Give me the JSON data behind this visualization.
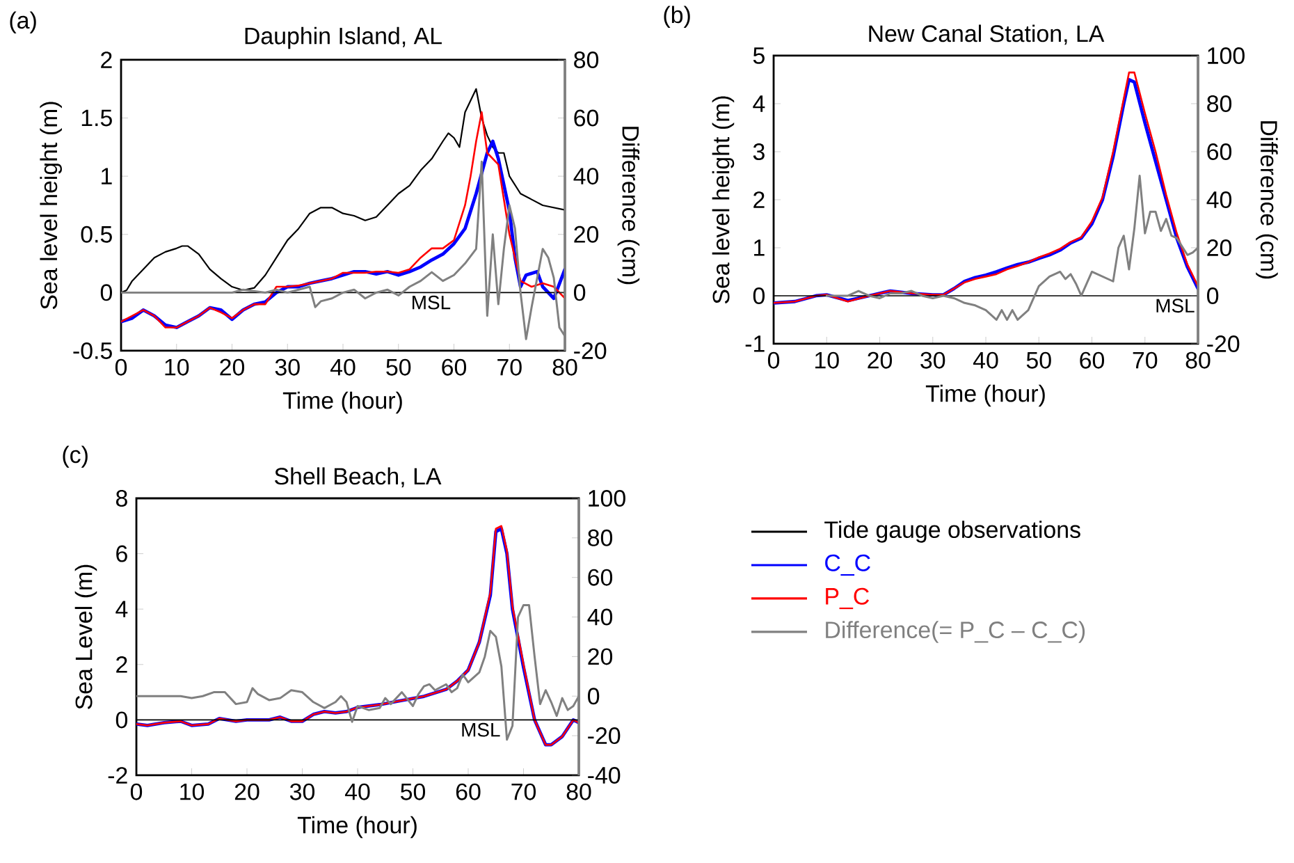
{
  "chart_data": [
    {
      "type": "line",
      "title": "Dauphin Island, AL",
      "xlabel": "Time (hour)",
      "ylabel": "Sea level height (m)",
      "y2label": "Difference (cm)",
      "annotations": [
        "(a)"
      ],
      "xlim": [
        0,
        80
      ],
      "xticks": [
        0,
        10,
        20,
        30,
        40,
        50,
        60,
        70,
        80
      ],
      "ylim": [
        -0.5,
        2
      ],
      "yticks": [
        -0.5,
        0,
        0.5,
        1,
        1.5,
        2
      ],
      "y2lim": [
        -20,
        80
      ],
      "y2ticks": [
        -20,
        0,
        20,
        40,
        60,
        80
      ],
      "ref_lines": [
        {
          "axis": "y",
          "value": 0,
          "label": "MSL",
          "color": "#000000"
        }
      ],
      "legend": "bottom right",
      "series": [
        {
          "name": "Tide gauge observations",
          "color": "#000000",
          "x": [
            0,
            1,
            2,
            4,
            6,
            8,
            10,
            11,
            12,
            14,
            16,
            18,
            20,
            22,
            24,
            26,
            28,
            30,
            32,
            34,
            36,
            38,
            40,
            42,
            44,
            46,
            48,
            50,
            52,
            54,
            56,
            58,
            59,
            60,
            61,
            62,
            63,
            64,
            65,
            66,
            67,
            68,
            69,
            70,
            72,
            74,
            76,
            78,
            80
          ],
          "values": [
            0,
            0.02,
            0.1,
            0.2,
            0.3,
            0.35,
            0.38,
            0.4,
            0.4,
            0.33,
            0.2,
            0.12,
            0.05,
            0.02,
            0.04,
            0.15,
            0.3,
            0.45,
            0.55,
            0.68,
            0.73,
            0.73,
            0.68,
            0.66,
            0.62,
            0.65,
            0.75,
            0.85,
            0.92,
            1.05,
            1.15,
            1.3,
            1.37,
            1.33,
            1.25,
            1.55,
            1.65,
            1.75,
            1.5,
            1.35,
            1.25,
            1.2,
            1.2,
            1.0,
            0.85,
            0.8,
            0.75,
            0.73,
            0.71
          ]
        },
        {
          "name": "C_C",
          "color": "#0000ff",
          "x": [
            0,
            2,
            4,
            6,
            8,
            10,
            12,
            14,
            16,
            18,
            20,
            22,
            24,
            26,
            28,
            30,
            32,
            34,
            36,
            38,
            40,
            42,
            44,
            46,
            48,
            50,
            52,
            54,
            56,
            58,
            60,
            62,
            64,
            66,
            67,
            68,
            70,
            71,
            72,
            73,
            75,
            76,
            78,
            80
          ],
          "values": [
            -0.25,
            -0.22,
            -0.15,
            -0.2,
            -0.28,
            -0.3,
            -0.25,
            -0.2,
            -0.13,
            -0.15,
            -0.23,
            -0.15,
            -0.1,
            -0.08,
            0,
            0.05,
            0.05,
            0.08,
            0.1,
            0.12,
            0.15,
            0.18,
            0.18,
            0.16,
            0.18,
            0.15,
            0.18,
            0.22,
            0.28,
            0.33,
            0.42,
            0.55,
            0.85,
            1.2,
            1.3,
            1.15,
            0.7,
            0.3,
            0.05,
            0.15,
            0.18,
            0.05,
            -0.05,
            0.2
          ]
        },
        {
          "name": "P_C",
          "color": "#ff0000",
          "x": [
            0,
            2,
            4,
            6,
            8,
            10,
            12,
            14,
            16,
            18,
            20,
            22,
            24,
            26,
            28,
            30,
            32,
            34,
            36,
            38,
            40,
            42,
            44,
            46,
            48,
            50,
            52,
            54,
            56,
            58,
            60,
            62,
            63,
            64,
            65,
            66,
            68,
            70,
            71,
            72,
            74,
            76,
            78,
            80
          ],
          "values": [
            -0.25,
            -0.2,
            -0.15,
            -0.2,
            -0.3,
            -0.3,
            -0.25,
            -0.2,
            -0.13,
            -0.17,
            -0.22,
            -0.15,
            -0.1,
            -0.1,
            0.05,
            0.05,
            0.06,
            0.08,
            0.1,
            0.12,
            0.17,
            0.17,
            0.17,
            0.18,
            0.18,
            0.17,
            0.2,
            0.3,
            0.38,
            0.38,
            0.45,
            0.75,
            1.0,
            1.3,
            1.55,
            1.2,
            1.1,
            0.5,
            0.3,
            0.1,
            0.05,
            0.08,
            0.05,
            -0.05
          ]
        },
        {
          "name": "Difference(= P_C – C_C)",
          "color": "#808080",
          "axis": "y2",
          "x": [
            0,
            10,
            20,
            22,
            26,
            28,
            30,
            32,
            34,
            35,
            36,
            38,
            40,
            42,
            44,
            46,
            48,
            50,
            52,
            54,
            56,
            58,
            60,
            62,
            64,
            65,
            66,
            67,
            68,
            69,
            70,
            71,
            72,
            73,
            74,
            76,
            77,
            78,
            79,
            80
          ],
          "values": [
            0,
            0,
            0,
            1,
            0,
            1,
            0,
            1,
            2,
            -5,
            -3,
            -2,
            0,
            1,
            -2,
            0,
            1,
            -1,
            2,
            4,
            7,
            4,
            6,
            10,
            15,
            45,
            -8,
            20,
            -4,
            15,
            30,
            22,
            0,
            -16,
            -5,
            15,
            12,
            5,
            -12,
            -15
          ]
        }
      ]
    },
    {
      "type": "line",
      "title": "New Canal Station, LA",
      "xlabel": "Time (hour)",
      "ylabel": "Sea level height (m)",
      "y2label": "Difference (cm)",
      "annotations": [
        "(b)"
      ],
      "xlim": [
        0,
        80
      ],
      "xticks": [
        0,
        10,
        20,
        30,
        40,
        50,
        60,
        70,
        80
      ],
      "ylim": [
        -1,
        5
      ],
      "yticks": [
        -1,
        0,
        1,
        2,
        3,
        4,
        5
      ],
      "y2lim": [
        -20,
        100
      ],
      "y2ticks": [
        -20,
        0,
        20,
        40,
        60,
        80,
        100
      ],
      "ref_lines": [
        {
          "axis": "y",
          "value": 0,
          "label": "MSL",
          "color": "#000000"
        }
      ],
      "series": [
        {
          "color": "#0000ff",
          "x": [
            0,
            4,
            8,
            10,
            14,
            18,
            22,
            26,
            30,
            32,
            34,
            36,
            38,
            40,
            42,
            44,
            46,
            48,
            50,
            52,
            54,
            56,
            58,
            60,
            62,
            64,
            66,
            67,
            68,
            70,
            72,
            74,
            76,
            78,
            80
          ],
          "values": [
            -0.15,
            -0.12,
            0,
            0.02,
            -0.1,
            0,
            0.1,
            0.05,
            0.02,
            0.02,
            0.15,
            0.3,
            0.38,
            0.43,
            0.5,
            0.58,
            0.65,
            0.7,
            0.78,
            0.85,
            0.95,
            1.1,
            1.2,
            1.5,
            2.0,
            2.9,
            4.0,
            4.5,
            4.45,
            3.6,
            2.8,
            2.0,
            1.2,
            0.6,
            0.15
          ]
        },
        {
          "color": "#ff0000",
          "x": [
            0,
            4,
            8,
            10,
            14,
            18,
            22,
            26,
            30,
            32,
            34,
            36,
            38,
            40,
            42,
            44,
            46,
            48,
            50,
            52,
            54,
            56,
            58,
            60,
            62,
            64,
            66,
            67,
            68,
            70,
            72,
            74,
            76,
            78,
            80
          ],
          "values": [
            -0.15,
            -0.12,
            0,
            0.02,
            -0.12,
            0,
            0.1,
            0.05,
            0.02,
            0.02,
            0.15,
            0.28,
            0.35,
            0.4,
            0.45,
            0.55,
            0.62,
            0.7,
            0.8,
            0.88,
            0.98,
            1.12,
            1.22,
            1.55,
            2.05,
            3.0,
            4.1,
            4.65,
            4.65,
            3.8,
            3.0,
            2.1,
            1.3,
            0.65,
            0.2
          ]
        },
        {
          "color": "#808080",
          "axis": "y2",
          "x": [
            10,
            14,
            16,
            18,
            20,
            22,
            24,
            26,
            28,
            30,
            32,
            34,
            36,
            38,
            40,
            42,
            43,
            44,
            45,
            46,
            48,
            50,
            52,
            54,
            55,
            56,
            57,
            58,
            60,
            62,
            64,
            65,
            66,
            67,
            68,
            69,
            70,
            71,
            72,
            73,
            74,
            75,
            76,
            78,
            79,
            80
          ],
          "values": [
            0,
            0,
            2,
            0,
            -1,
            1,
            1,
            2,
            0,
            -1,
            0,
            -1,
            -3,
            -4,
            -6,
            -10,
            -6,
            -10,
            -6,
            -10,
            -6,
            4,
            8,
            10,
            7,
            9,
            5,
            0,
            10,
            8,
            6,
            20,
            25,
            11,
            28,
            50,
            26,
            35,
            35,
            27,
            32,
            25,
            24,
            17,
            18,
            20
          ]
        }
      ]
    },
    {
      "type": "line",
      "title": "Shell Beach, LA",
      "xlabel": "Time (hour)",
      "ylabel": "Sea Level (m)",
      "annotations": [
        "(c)"
      ],
      "xlim": [
        0,
        80
      ],
      "xticks": [
        0,
        10,
        20,
        30,
        40,
        50,
        60,
        70,
        80
      ],
      "ylim": [
        -2,
        8
      ],
      "yticks": [
        -2,
        0,
        2,
        4,
        6,
        8
      ],
      "y2lim": [
        -40,
        100
      ],
      "y2ticks": [
        -40,
        -20,
        0,
        20,
        40,
        60,
        80,
        100
      ],
      "ref_lines": [
        {
          "axis": "y",
          "value": 0,
          "label": "MSL",
          "color": "#000000"
        }
      ],
      "series": [
        {
          "color": "#0000ff",
          "x": [
            0,
            2,
            5,
            8,
            10,
            13,
            15,
            18,
            20,
            24,
            26,
            28,
            30,
            32,
            34,
            36,
            38,
            40,
            44,
            48,
            52,
            56,
            58,
            60,
            62,
            64,
            65,
            66,
            67,
            68,
            70,
            72,
            74,
            75,
            77,
            79,
            80
          ],
          "values": [
            -0.15,
            -0.2,
            -0.1,
            -0.05,
            -0.2,
            -0.15,
            0.05,
            -0.05,
            0,
            0,
            0.1,
            -0.05,
            -0.05,
            0.2,
            0.3,
            0.25,
            0.3,
            0.45,
            0.55,
            0.7,
            0.85,
            1.1,
            1.4,
            1.8,
            2.8,
            4.5,
            6.8,
            6.9,
            6.0,
            4.0,
            1.9,
            0.0,
            -0.9,
            -0.9,
            -0.6,
            0.0,
            -0.1
          ]
        },
        {
          "color": "#ff0000",
          "x": [
            0,
            2,
            5,
            8,
            10,
            13,
            15,
            18,
            20,
            24,
            26,
            28,
            30,
            32,
            34,
            36,
            38,
            40,
            44,
            48,
            52,
            56,
            58,
            60,
            62,
            64,
            65,
            66,
            67,
            68,
            70,
            72,
            74,
            75,
            77,
            79,
            80
          ],
          "values": [
            -0.15,
            -0.2,
            -0.1,
            -0.05,
            -0.2,
            -0.15,
            0.05,
            -0.05,
            0,
            0,
            0.1,
            -0.05,
            -0.05,
            0.2,
            0.3,
            0.25,
            0.3,
            0.45,
            0.55,
            0.7,
            0.85,
            1.1,
            1.4,
            1.8,
            2.8,
            4.6,
            6.9,
            7.0,
            6.1,
            4.1,
            2.0,
            0.0,
            -0.9,
            -0.9,
            -0.6,
            0.0,
            -0.1
          ]
        },
        {
          "color": "#808080",
          "axis": "y2",
          "x": [
            0,
            8,
            10,
            12,
            14,
            16,
            18,
            20,
            21,
            22,
            24,
            26,
            28,
            30,
            32,
            34,
            36,
            37,
            38,
            39,
            40,
            42,
            44,
            45,
            46,
            48,
            50,
            51,
            52,
            53,
            54,
            56,
            57,
            58,
            59,
            60,
            62,
            63,
            64,
            65,
            66,
            67,
            68,
            69,
            70,
            71,
            72,
            73,
            74,
            75,
            76,
            77,
            78,
            79,
            80
          ],
          "values": [
            0,
            0,
            -1,
            0,
            2,
            2,
            -4,
            -3,
            4,
            1,
            -2,
            -1,
            3,
            2,
            -3,
            -6,
            -3,
            0,
            -3,
            -13,
            -5,
            -7,
            -6,
            -1,
            -4,
            2,
            -5,
            1,
            5,
            6,
            3,
            6,
            2,
            4,
            11,
            7,
            12,
            20,
            33,
            30,
            15,
            -22,
            -15,
            40,
            46,
            46,
            20,
            -4,
            3,
            -3,
            -10,
            -1,
            -7,
            -5,
            0
          ]
        }
      ]
    }
  ]
}
